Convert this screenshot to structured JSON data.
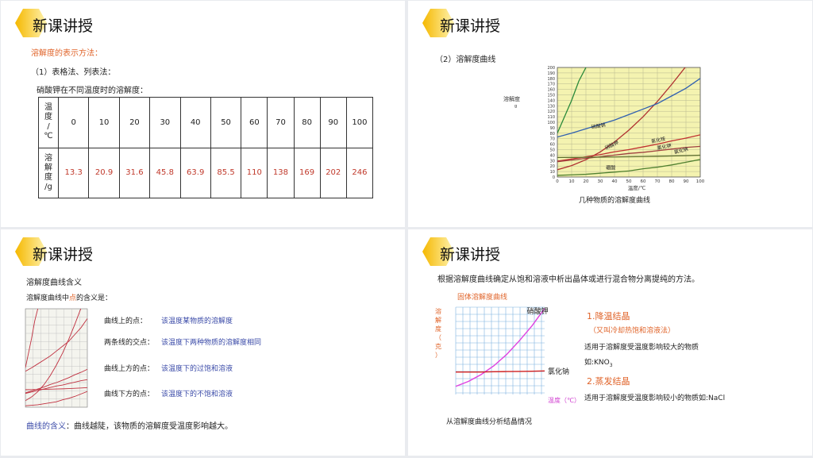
{
  "header_title": "新课讲授",
  "slide1": {
    "section": "溶解度的表示方法：",
    "method": "（1）表格法、列表法：",
    "caption": "硝酸钾在不同温度时的溶解度：",
    "row1_head": "温\n度\n/\n℃",
    "row2_head": "溶\n解\n度\n/g",
    "temps": [
      "0",
      "10",
      "20",
      "30",
      "40",
      "50",
      "60",
      "70",
      "80",
      "90",
      "100"
    ],
    "values": [
      "13.3",
      "20.9",
      "31.6",
      "45.8",
      "63.9",
      "85.5",
      "110",
      "138",
      "169",
      "202",
      "246"
    ]
  },
  "slide2": {
    "method": "（2）溶解度曲线",
    "ylabel": "溶解度",
    "ylabel_unit": "g",
    "xlabel": "温度/℃",
    "caption": "几种物质的溶解度曲线",
    "curve_labels": [
      "硝酸钠",
      "硝酸钾",
      "氯化铵",
      "氯化钾",
      "氯化钠",
      "硼酸"
    ],
    "chart_data": {
      "type": "line",
      "xlim": [
        0,
        100
      ],
      "ylim": [
        0,
        200
      ],
      "x_ticks": [
        "0",
        "10",
        "20",
        "30",
        "40",
        "50",
        "60",
        "70",
        "80",
        "90",
        "100"
      ],
      "y_ticks": [
        "0",
        "10",
        "20",
        "30",
        "40",
        "50",
        "60",
        "70",
        "80",
        "90",
        "100",
        "110",
        "120",
        "130",
        "140",
        "150",
        "160",
        "170",
        "180",
        "190",
        "200"
      ],
      "grid": true,
      "series": [
        {
          "name": "硝酸钾",
          "color": "#b03030",
          "x": [
            0,
            10,
            20,
            30,
            40,
            50,
            60,
            70,
            80,
            90,
            100
          ],
          "y": [
            13.3,
            20.9,
            31.6,
            45.8,
            63.9,
            85.5,
            110,
            138,
            169,
            202,
            246
          ]
        },
        {
          "name": "硝酸钠",
          "color": "#3060b0",
          "x": [
            0,
            10,
            20,
            30,
            40,
            50,
            60,
            70,
            80,
            90,
            100
          ],
          "y": [
            73,
            80,
            88,
            96,
            104,
            114,
            124,
            134,
            148,
            162,
            180
          ]
        },
        {
          "name": "氯化铵",
          "color": "#c03030",
          "x": [
            0,
            10,
            20,
            30,
            40,
            50,
            60,
            70,
            80,
            90,
            100
          ],
          "y": [
            29,
            33,
            37,
            41,
            46,
            50,
            55,
            60,
            66,
            71,
            77
          ]
        },
        {
          "name": "氯化钾",
          "color": "#a04040",
          "x": [
            0,
            10,
            20,
            30,
            40,
            50,
            60,
            70,
            80,
            90,
            100
          ],
          "y": [
            28,
            31,
            34,
            37,
            40,
            43,
            45,
            48,
            51,
            54,
            56
          ]
        },
        {
          "name": "氯化钠",
          "color": "#607030",
          "x": [
            0,
            10,
            20,
            30,
            40,
            50,
            60,
            70,
            80,
            90,
            100
          ],
          "y": [
            35.7,
            35.8,
            36,
            36.3,
            36.6,
            37,
            37.3,
            37.8,
            38.4,
            39,
            39.8
          ]
        },
        {
          "name": "硼酸",
          "color": "#508030",
          "x": [
            0,
            10,
            20,
            30,
            40,
            50,
            60,
            70,
            80,
            90,
            100
          ],
          "y": [
            3,
            4,
            5,
            7,
            9,
            11,
            15,
            18,
            22,
            27,
            32
          ]
        },
        {
          "name": "",
          "color": "#2a8a3a",
          "x": [
            0,
            5,
            10,
            15,
            20
          ],
          "y": [
            80,
            110,
            140,
            175,
            200
          ]
        }
      ]
    }
  },
  "slide3": {
    "title": "溶解度曲线含义",
    "intro_before": "溶解度曲线中",
    "intro_dot": "点",
    "intro_after": "的含义是：",
    "items": [
      {
        "label": "曲线上的点：",
        "meaning": "该温度某物质的溶解度"
      },
      {
        "label": "两条线的交点：",
        "meaning": "该温度下两种物质的溶解度相同"
      },
      {
        "label": "曲线上方的点：",
        "meaning": "该温度下的过饱和溶液"
      },
      {
        "label": "曲线下方的点：",
        "meaning": "该温度下的不饱和溶液"
      }
    ],
    "curve_meaning_label": "曲线的含义",
    "curve_meaning_text": "：曲线越陡，该物质的溶解度受温度影响越大。"
  },
  "slide4": {
    "intro": "根据溶解度曲线确定从饱和溶液中析出晶体或进行混合物分离提纯的方法。",
    "chart_title": "固体溶解度曲线",
    "ylabel": "溶解度（克）",
    "xlabel": "温度（℃）",
    "label_kno3": "硝酸钾",
    "label_nacl": "氯化钠",
    "caption": "从溶解度曲线分析结晶情况",
    "method1_title": "1.降温结晶",
    "method1_sub": "（又叫冷却热饱和溶液法）",
    "method1_desc": "适用于溶解度受温度影响较大的物质",
    "method1_example_prefix": "如:KNO",
    "method1_example_sub": "3",
    "method2_title": "2.蒸发结晶",
    "method2_desc": "适用于溶解度受温度影响较小的物质如:NaCl",
    "chart_data": {
      "type": "line",
      "series": [
        {
          "name": "硝酸钾",
          "color": "#e040e0",
          "x": [
            0,
            10,
            20,
            30,
            40,
            50,
            60,
            70
          ],
          "y": [
            13,
            21,
            32,
            46,
            64,
            86,
            110,
            138
          ]
        },
        {
          "name": "氯化钠",
          "color": "#d02020",
          "x": [
            0,
            10,
            20,
            30,
            40,
            50,
            60,
            70
          ],
          "y": [
            36,
            36,
            36,
            36.5,
            36.8,
            37,
            37.3,
            37.8
          ]
        }
      ]
    }
  }
}
